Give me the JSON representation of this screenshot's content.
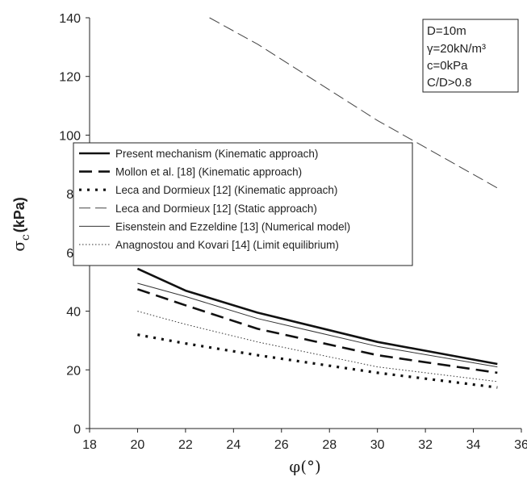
{
  "chart_data": {
    "type": "line",
    "xlabel": "φ(°)",
    "ylabel": "σ",
    "ylabel_sub": "c",
    "ylabel_unit": "(kPa)",
    "xlim": [
      18,
      36
    ],
    "ylim": [
      0,
      140
    ],
    "xticks": [
      18,
      20,
      22,
      24,
      26,
      28,
      30,
      32,
      34,
      36
    ],
    "yticks": [
      0,
      20,
      40,
      60,
      80,
      100,
      120,
      140
    ],
    "grid": false,
    "legend_position": "upper-left",
    "parameters": [
      "D=10m",
      "γ=20kN/m³",
      "c=0kPa",
      "C/D>0.8"
    ],
    "series": [
      {
        "name": "Present mechanism (Kinematic approach)",
        "style": "solid-thick",
        "color": "#111111",
        "x": [
          20,
          22,
          25,
          30,
          35
        ],
        "y": [
          54.5,
          47,
          39.5,
          29.5,
          22
        ]
      },
      {
        "name": "Mollon et al. [18] (Kinematic approach)",
        "style": "long-dash-thick",
        "color": "#111111",
        "x": [
          20,
          22,
          25,
          30,
          35
        ],
        "y": [
          47.5,
          42,
          34,
          25,
          19
        ]
      },
      {
        "name": "Leca and Dormieux [12] (Kinematic approach)",
        "style": "dotted-thick",
        "color": "#111111",
        "x": [
          20,
          22,
          25,
          30,
          35
        ],
        "y": [
          32,
          29,
          25,
          19,
          14
        ]
      },
      {
        "name": "Leca and Dormieux [12] (Static approach)",
        "style": "dash-thin",
        "color": "#444444",
        "x": [
          23,
          25,
          30,
          35
        ],
        "y": [
          140,
          131,
          105,
          82
        ]
      },
      {
        "name": "Eisenstein and Ezzeldine [13] (Numerical model)",
        "style": "solid-thin",
        "color": "#333333",
        "x": [
          20,
          22,
          25,
          30,
          35
        ],
        "y": [
          49.5,
          45,
          37.5,
          28,
          21
        ]
      },
      {
        "name": "Anagnostou and Kovari [14] (Limit equilibrium)",
        "style": "dotted-thin",
        "color": "#333333",
        "x": [
          20,
          22,
          25,
          30,
          35
        ],
        "y": [
          40,
          35.5,
          29.5,
          21,
          16
        ]
      }
    ]
  }
}
